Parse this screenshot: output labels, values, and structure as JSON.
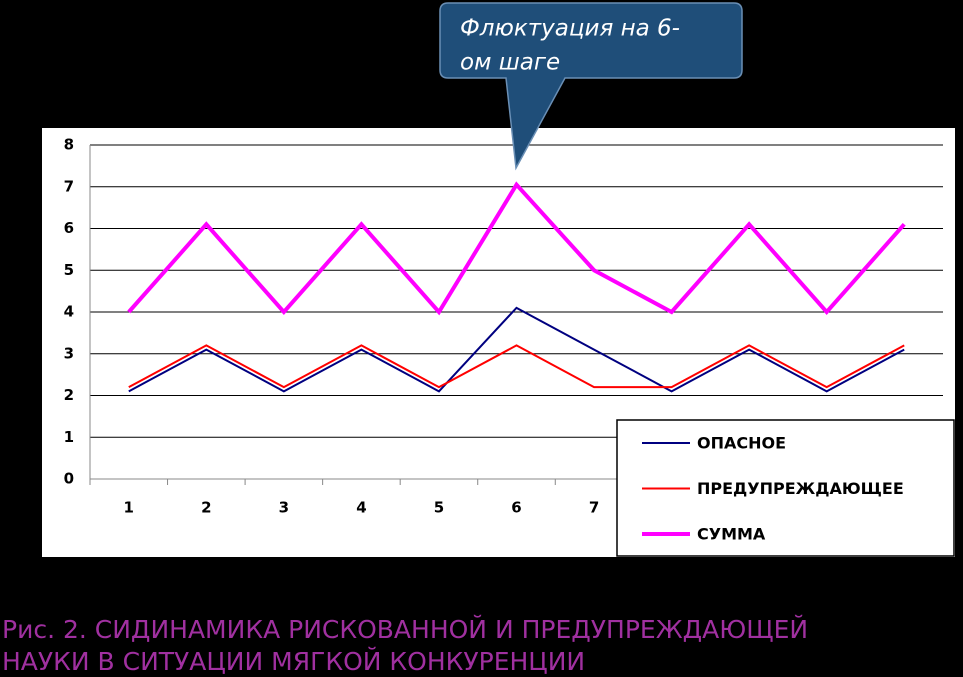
{
  "chart_data": {
    "type": "line",
    "annotation": [
      "Флюктуация на 6-",
      "ом шаге"
    ],
    "caption": [
      "Рис. 2. СИДИНАМИКА РИСКОВАННОЙ И ПРЕДУПРЕЖДАЮЩЕЙ",
      "НАУКИ В СИТУАЦИИ МЯГКОЙ КОНКУРЕНЦИИ"
    ],
    "categories": [
      "1",
      "2",
      "3",
      "4",
      "5",
      "6",
      "7",
      null,
      null,
      null,
      null
    ],
    "series": [
      {
        "name": "ОПАСНОЕ",
        "color": "#000080",
        "values": [
          2.1,
          3.1,
          2.1,
          3.1,
          2.1,
          4.1,
          3.1,
          2.1,
          3.1,
          2.1,
          3.1
        ]
      },
      {
        "name": "ПРЕДУПРЕЖДАЮЩЕЕ",
        "color": "#ff0000",
        "values": [
          2.2,
          3.2,
          2.2,
          3.2,
          2.2,
          3.2,
          2.2,
          2.2,
          3.2,
          2.2,
          3.2
        ]
      },
      {
        "name": "СУММА",
        "color": "#ff00ff",
        "values": [
          4,
          6.1,
          4,
          6.1,
          4,
          7.05,
          5,
          4,
          6.1,
          4,
          6.1
        ]
      }
    ],
    "ylim": [
      0,
      8
    ],
    "yticks": [
      0,
      1,
      2,
      3,
      4,
      5,
      6,
      7,
      8
    ],
    "grid": true,
    "legend": "bottom-right"
  }
}
